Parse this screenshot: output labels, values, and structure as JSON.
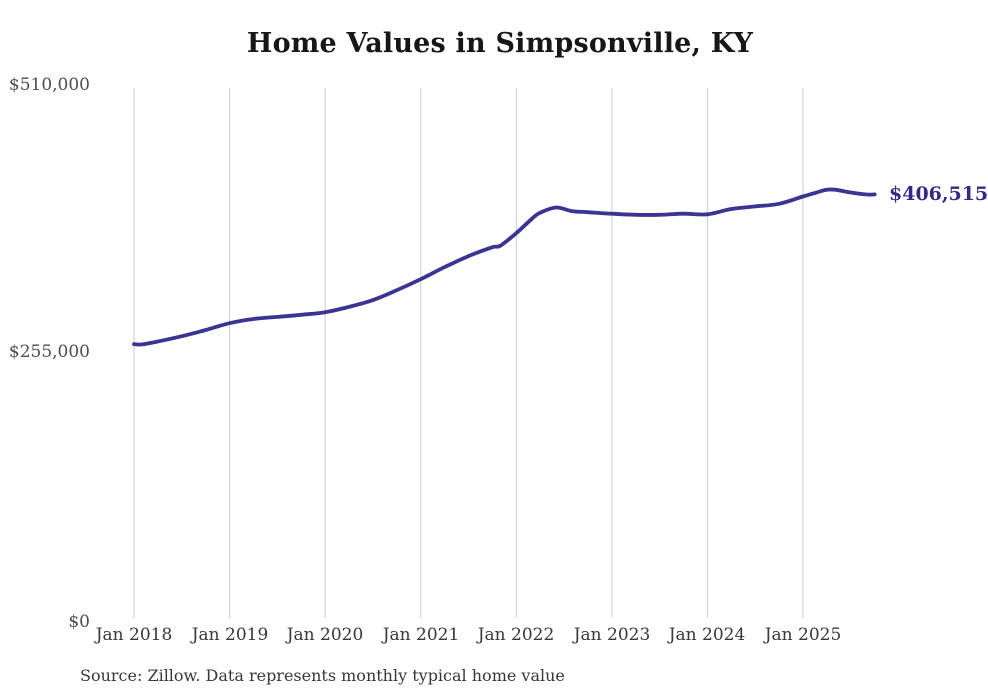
{
  "title": "Home Values in Simpsonville, KY",
  "source_note": "Source: Zillow. Data represents monthly typical home value",
  "end_label": "$406,515",
  "colors": {
    "line": "#3a3492",
    "end_label_text": "#312b87",
    "gridline": "#cbcbcb",
    "y_axis_text": "#4d4d4d",
    "x_axis_text": "#383838",
    "title_text": "#171717"
  },
  "chart_data": {
    "type": "line",
    "title": "Home Values in Simpsonville, KY",
    "xlabel": "",
    "ylabel": "",
    "ylim": [
      0,
      510000
    ],
    "grid": "vertical-only",
    "legend": "none",
    "x_tick_labels": [
      "Jan 2018",
      "Jan 2019",
      "Jan 2020",
      "Jan 2021",
      "Jan 2022",
      "Jan 2023",
      "Jan 2024",
      "Jan 2025"
    ],
    "y_tick_labels": [
      "$510,000",
      "$255,000",
      "$0"
    ],
    "y_tick_values": [
      510000,
      255000,
      0
    ],
    "last_value": 406515,
    "last_value_label": "$406,515",
    "last_month": "2025-10",
    "series": [
      {
        "name": "Typical home value (monthly)",
        "color": "#3a3492",
        "points": [
          [
            "2018-01",
            263500
          ],
          [
            "2018-02",
            263200
          ],
          [
            "2018-04",
            266000
          ],
          [
            "2018-07",
            271000
          ],
          [
            "2018-10",
            277000
          ],
          [
            "2019-01",
            283500
          ],
          [
            "2019-04",
            287500
          ],
          [
            "2019-07",
            289500
          ],
          [
            "2019-10",
            291500
          ],
          [
            "2020-01",
            294000
          ],
          [
            "2020-04",
            299000
          ],
          [
            "2020-07",
            305500
          ],
          [
            "2020-10",
            315000
          ],
          [
            "2021-01",
            325500
          ],
          [
            "2021-04",
            337000
          ],
          [
            "2021-07",
            347500
          ],
          [
            "2021-10",
            356000
          ],
          [
            "2021-11",
            357500
          ],
          [
            "2022-01",
            369500
          ],
          [
            "2022-03",
            383500
          ],
          [
            "2022-04",
            389000
          ],
          [
            "2022-06",
            394000
          ],
          [
            "2022-08",
            390500
          ],
          [
            "2022-10",
            389500
          ],
          [
            "2023-01",
            388000
          ],
          [
            "2023-04",
            387000
          ],
          [
            "2023-07",
            387000
          ],
          [
            "2023-10",
            388000
          ],
          [
            "2024-01",
            387500
          ],
          [
            "2024-04",
            392500
          ],
          [
            "2024-07",
            395000
          ],
          [
            "2024-10",
            397500
          ],
          [
            "2025-01",
            404500
          ],
          [
            "2025-03",
            409000
          ],
          [
            "2025-04",
            411000
          ],
          [
            "2025-05",
            411000
          ],
          [
            "2025-07",
            408300
          ],
          [
            "2025-09",
            406400
          ],
          [
            "2025-10",
            406515
          ]
        ]
      }
    ]
  }
}
